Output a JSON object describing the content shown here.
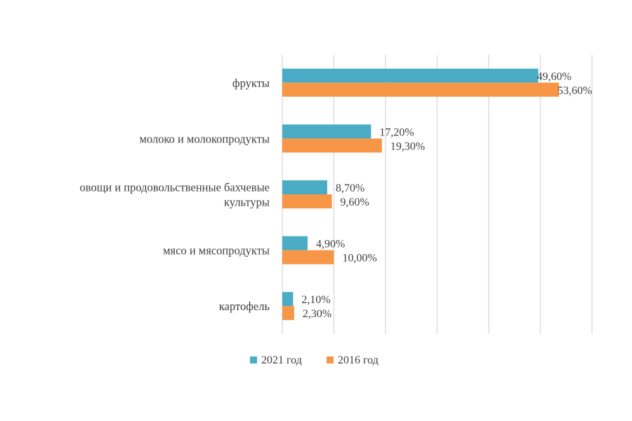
{
  "chart_data": {
    "type": "bar",
    "orientation": "horizontal",
    "categories": [
      [
        "фрукты"
      ],
      [
        "молоко и молокопродукты"
      ],
      [
        "овощи и продовольственные бахчевые",
        "культуры"
      ],
      [
        "мясо и мясопродукты"
      ],
      [
        "картофель"
      ]
    ],
    "series": [
      {
        "name": "2021 год",
        "color": "#4BACC6",
        "values": [
          49.6,
          17.2,
          8.7,
          4.9,
          2.1
        ],
        "labels": [
          "49,60%",
          "17,20%",
          "8,70%",
          "4,90%",
          "2,10%"
        ]
      },
      {
        "name": "2016 год",
        "color": "#F79646",
        "values": [
          53.6,
          19.3,
          9.6,
          10.0,
          2.3
        ],
        "labels": [
          "53,60%",
          "19,30%",
          "9,60%",
          "10,00%",
          "2,30%"
        ]
      }
    ],
    "xlim": [
      0,
      60
    ],
    "gridlines": "vertical",
    "legend_position": "bottom",
    "title": "",
    "xlabel": "",
    "ylabel": ""
  }
}
